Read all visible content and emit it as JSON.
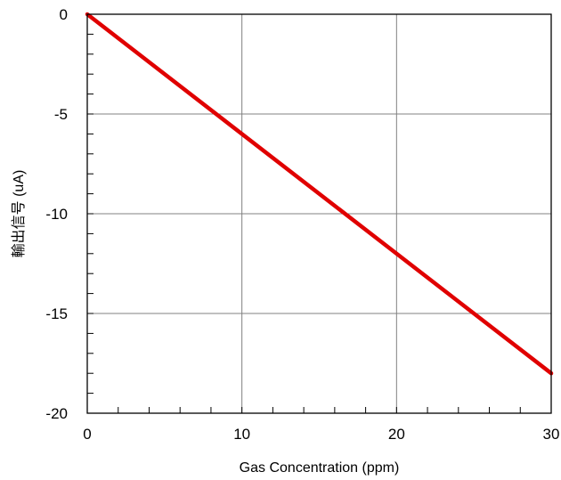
{
  "chart_data": {
    "type": "line",
    "xlabel": "Gas Concentration (ppm)",
    "ylabel": "輸出信号 (uA)",
    "xlim": [
      0,
      30
    ],
    "ylim": [
      -20,
      0
    ],
    "x_ticks": [
      0,
      10,
      20,
      30
    ],
    "y_ticks": [
      0,
      -5,
      -10,
      -15,
      -20
    ],
    "x_ticks_labels": [
      "0",
      "10",
      "20",
      "30"
    ],
    "y_ticks_labels": [
      "0",
      "-5",
      "-10",
      "-15",
      "-20"
    ],
    "x_minor_step": 2,
    "y_minor_step": 1,
    "grid": true,
    "legend": "none",
    "series": [
      {
        "x": [
          0,
          30
        ],
        "y": [
          0,
          -18
        ],
        "color": "#e00000"
      }
    ],
    "colors": {
      "line": "#e00000",
      "grid": "#808080",
      "axis": "#000000"
    }
  }
}
